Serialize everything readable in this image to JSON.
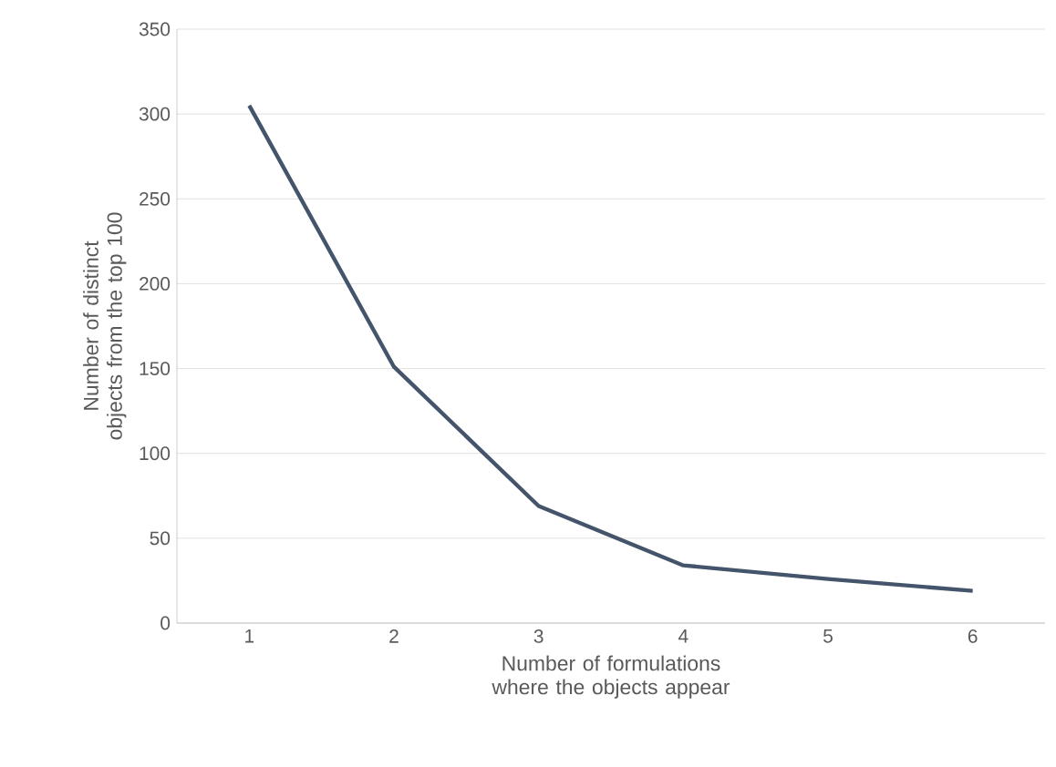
{
  "chart_data": {
    "type": "line",
    "xlabel": "Number of formulations where the objects appear",
    "ylabel": "Number of distinct objects from the top 100",
    "categories": [
      "1",
      "2",
      "3",
      "4",
      "5",
      "6"
    ],
    "series": [
      {
        "color": "#44546a",
        "values": [
          305,
          151,
          69,
          34,
          26,
          19
        ]
      }
    ],
    "ylim": [
      0,
      350
    ],
    "yticks": [
      0,
      50,
      100,
      150,
      200,
      250,
      300,
      350
    ],
    "grid": "y",
    "marker": "none",
    "line_style": "solid"
  }
}
